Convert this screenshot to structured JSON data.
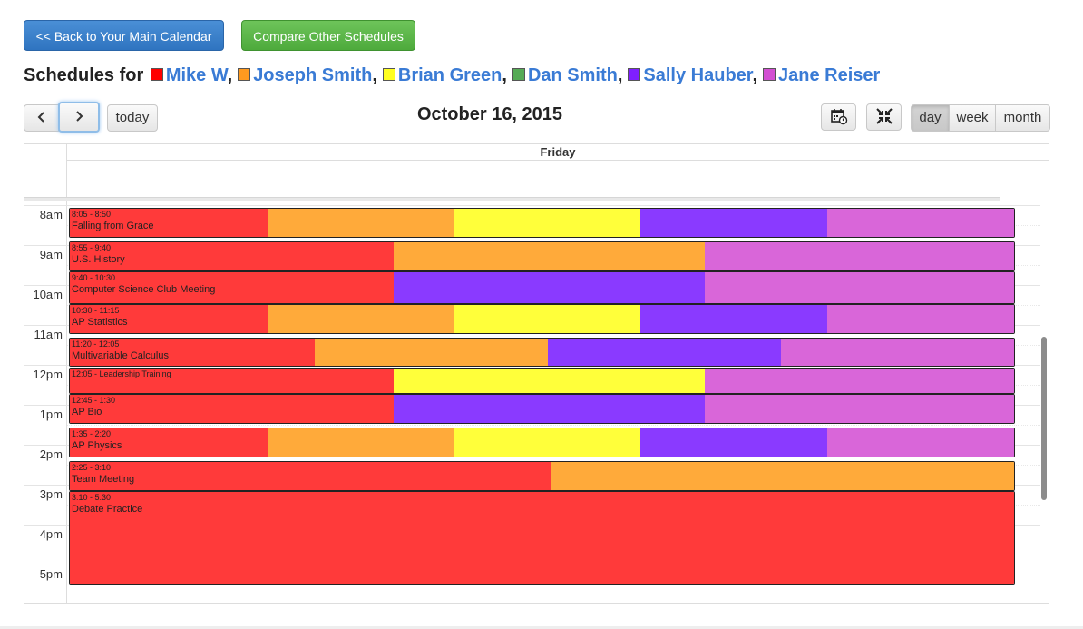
{
  "toolbar": {
    "back_label": "<< Back to Your Main Calendar",
    "compare_label": "Compare Other Schedules"
  },
  "heading": {
    "prefix": "Schedules for",
    "people": [
      {
        "name": "Mike W",
        "color": "#ff0000",
        "sep": ","
      },
      {
        "name": "Joseph Smith",
        "color": "#ff9a1f",
        "sep": ","
      },
      {
        "name": "Brian Green",
        "color": "#ffff20",
        "sep": ","
      },
      {
        "name": "Dan Smith",
        "color": "#55aa55",
        "sep": ","
      },
      {
        "name": "Sally Hauber",
        "color": "#7f1fff",
        "sep": ","
      },
      {
        "name": "Jane Reiser",
        "color": "#d24fd2",
        "sep": ""
      }
    ]
  },
  "nav": {
    "prev_icon": "chevron-left-icon",
    "next_icon": "chevron-right-icon",
    "today_label": "today",
    "date_title": "October 16, 2015",
    "calendar_icon": "calendar-clock-icon",
    "compress_icon": "compress-arrows-icon",
    "views": [
      "day",
      "week",
      "month"
    ],
    "active_view": "day"
  },
  "calendar": {
    "day_label": "Friday",
    "time_labels": [
      "8am",
      "9am",
      "10am",
      "11am",
      "12pm",
      "1pm",
      "2pm",
      "3pm",
      "4pm",
      "5pm"
    ],
    "events": [
      {
        "time": "8:05 - 8:50",
        "title": "Falling from Grace",
        "colors": [
          "#ff3a3a",
          "#ffaa3a",
          "#ffff3a",
          "#8a3aff",
          "#d966d9"
        ]
      },
      {
        "time": "8:55 - 9:40",
        "title": "U.S. History",
        "colors": [
          "#ff3a3a",
          "#ffaa3a",
          "#d966d9"
        ]
      },
      {
        "time": "9:40 - 10:30",
        "title": "Computer Science Club Meeting",
        "colors": [
          "#ff3a3a",
          "#8a3aff",
          "#d966d9"
        ]
      },
      {
        "time": "10:30 - 11:15",
        "title": "AP Statistics",
        "colors": [
          "#ff3a3a",
          "#ffaa3a",
          "#ffff3a",
          "#8a3aff",
          "#d966d9"
        ]
      },
      {
        "time": "11:20 - 12:05",
        "title": "Multivariable Calculus",
        "colors": [
          "#ff3a3a",
          "#ffaa3a",
          "#8a3aff",
          "#d966d9"
        ]
      },
      {
        "time": "12:05 - Leadership Training",
        "title": "",
        "colors": [
          "#ff3a3a",
          "#ffff3a",
          "#d966d9"
        ]
      },
      {
        "time": "12:45 - 1:30",
        "title": "AP Bio",
        "colors": [
          "#ff3a3a",
          "#8a3aff",
          "#d966d9"
        ]
      },
      {
        "time": "1:35 - 2:20",
        "title": "AP Physics",
        "colors": [
          "#ff3a3a",
          "#ffaa3a",
          "#ffff3a",
          "#8a3aff",
          "#d966d9"
        ]
      },
      {
        "time": "2:25 - 3:10",
        "title": "Team Meeting",
        "colors": [
          "#ff3a3a",
          "#ffaa3a"
        ]
      },
      {
        "time": "3:10 - 5:30",
        "title": "Debate Practice",
        "colors": [
          "#ff3a3a"
        ]
      }
    ]
  }
}
